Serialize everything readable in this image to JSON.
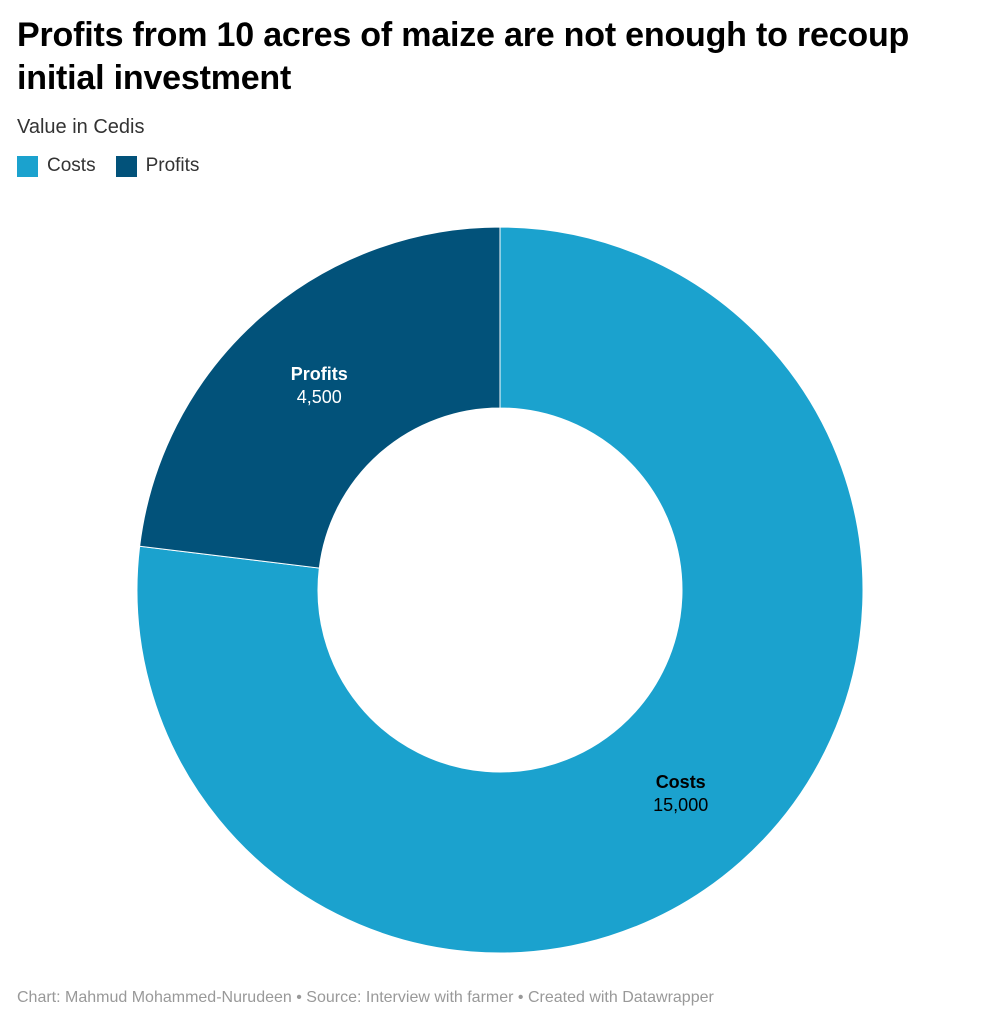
{
  "header": {
    "title": "Profits from 10 acres of maize are not enough to recoup initial investment",
    "subtitle": "Value in Cedis"
  },
  "footer": {
    "text": "Chart: Mahmud Mohammed-Nurudeen • Source: Interview with farmer • Created with Datawrapper"
  },
  "chart_data": {
    "type": "pie",
    "variant": "donut",
    "title": "Profits from 10 acres of maize are not enough to recoup initial investment",
    "subtitle": "Value in Cedis",
    "legend_position": "top-left",
    "slices": [
      {
        "label": "Costs",
        "value": 15000,
        "value_label": "15,000",
        "color": "#1ba2ce",
        "label_color": "#000000"
      },
      {
        "label": "Profits",
        "value": 4500,
        "value_label": "4,500",
        "color": "#02527a",
        "label_color": "#ffffff"
      }
    ]
  }
}
